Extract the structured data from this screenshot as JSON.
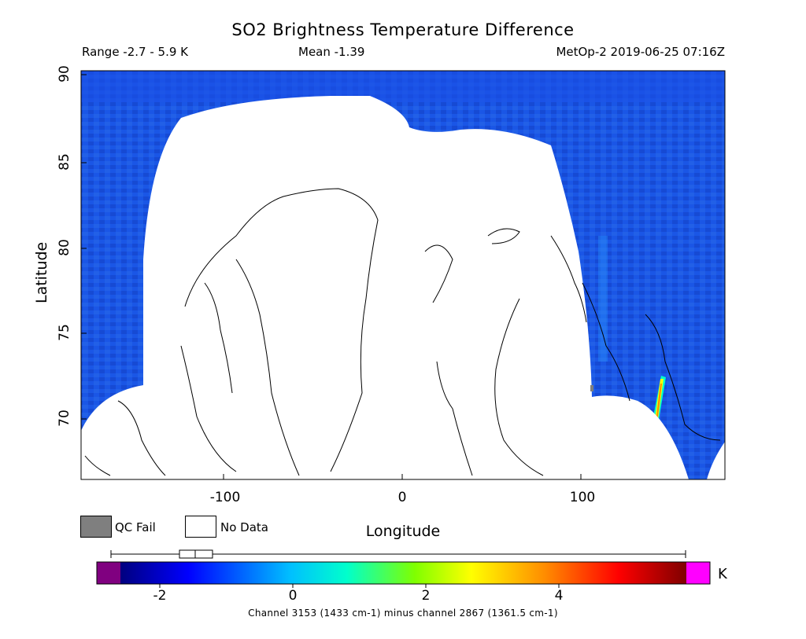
{
  "title": "SO2 Brightness Temperature Difference",
  "header": {
    "range": "Range -2.7 - 5.9 K",
    "mean": "Mean -1.39",
    "satellite_time": "MetOp-2 2019-06-25 07:16Z"
  },
  "map": {
    "xlabel": "Longitude",
    "ylabel": "Latitude",
    "x_ticks": [
      "-100",
      "0",
      "100"
    ],
    "y_ticks": [
      "90",
      "85",
      "80",
      "75",
      "70"
    ],
    "xlim": [
      -180,
      180
    ],
    "ylim": [
      66.5,
      90
    ],
    "no_data_color": "#ffffff",
    "background_color": "#1a56e6"
  },
  "legend": {
    "qc_fail_label": "QC Fail",
    "no_data_label": "No Data",
    "qc_fail_color": "#7f7f7f",
    "no_data_color": "#ffffff"
  },
  "colorbar": {
    "ticks": [
      "-2",
      "0",
      "2",
      "4"
    ],
    "tick_values": [
      -2,
      0,
      2,
      4
    ],
    "range": [
      -2.7,
      5.9
    ],
    "unit": "K",
    "under_color": "#800080",
    "over_color": "#ff00ff",
    "stops": [
      "#00007f",
      "#0000ff",
      "#00bfff",
      "#00ffcc",
      "#7fff00",
      "#ffff00",
      "#ff8c00",
      "#ff0000",
      "#7f0000"
    ]
  },
  "caption": "Channel 3153 (1433 cm-1) minus channel 2867 (1361.5 cm-1)"
}
